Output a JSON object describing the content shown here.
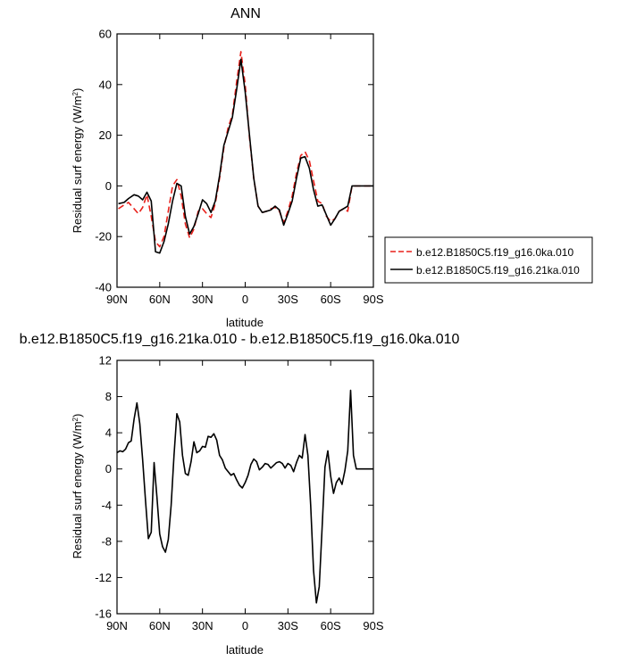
{
  "chart_data": [
    {
      "type": "line",
      "title": "ANN",
      "xlabel": "latitude",
      "ylabel": "Residual surf energy (W/m²)",
      "ylabel_text": "Residual surf energy (W/m",
      "ylabel_sup": "2",
      "ylabel_close": ")",
      "xlim": [
        90,
        -90
      ],
      "ylim": [
        -40,
        60
      ],
      "x_ticks": [
        90,
        60,
        30,
        0,
        -30,
        -60,
        -90
      ],
      "x_tick_labels": [
        "90N",
        "60N",
        "30N",
        "0",
        "30S",
        "60S",
        "90S"
      ],
      "y_ticks": [
        -40,
        -20,
        0,
        20,
        40,
        60
      ],
      "y_tick_labels": [
        "-40",
        "-20",
        "0",
        "20",
        "40",
        "60"
      ],
      "legend_position": "right",
      "series": [
        {
          "name": "b.e12.B1850C5.f19_g16.0ka.010",
          "color": "#e8201a",
          "dash": "dashed",
          "x": [
            89,
            85,
            82,
            78,
            75,
            72,
            69,
            66,
            63,
            60,
            57,
            54,
            51,
            48,
            45,
            42,
            39,
            36,
            33,
            30,
            27,
            24,
            21,
            18,
            15,
            12,
            9,
            6,
            3,
            0,
            -3,
            -6,
            -9,
            -12,
            -15,
            -18,
            -21,
            -24,
            -27,
            -30,
            -33,
            -36,
            -39,
            -42,
            -45,
            -48,
            -51,
            -54,
            -57,
            -60,
            -63,
            -66,
            -69,
            -72,
            -75,
            -78,
            -81,
            -84,
            -87,
            -90
          ],
          "y": [
            -9,
            -7.5,
            -6.5,
            -9,
            -11,
            -8.5,
            -3.5,
            -12,
            -22,
            -24,
            -20,
            -10,
            0,
            2.5,
            -4,
            -15,
            -20.5,
            -17,
            -10,
            -9,
            -11,
            -12.5,
            -7,
            3,
            15,
            23,
            28,
            41,
            53,
            40,
            19,
            3,
            -8,
            -10.5,
            -10,
            -9,
            -8.5,
            -10,
            -14.5,
            -10,
            -4,
            5,
            12,
            13.5,
            10,
            2,
            -6,
            -7,
            -12,
            -14,
            -13,
            -10,
            -9,
            -10,
            0,
            0,
            0,
            0,
            0,
            0
          ]
        },
        {
          "name": "b.e12.B1850C5.f19_g16.21ka.010",
          "color": "#000000",
          "dash": "solid",
          "x": [
            89,
            85,
            82,
            78,
            75,
            72,
            69,
            66,
            63,
            60,
            57,
            54,
            51,
            48,
            45,
            42,
            39,
            36,
            33,
            30,
            27,
            24,
            21,
            18,
            15,
            12,
            9,
            6,
            3,
            0,
            -3,
            -6,
            -9,
            -12,
            -15,
            -18,
            -21,
            -24,
            -27,
            -30,
            -33,
            -36,
            -39,
            -42,
            -45,
            -48,
            -51,
            -54,
            -57,
            -60,
            -63,
            -66,
            -69,
            -72,
            -75,
            -78,
            -81,
            -84,
            -87,
            -90
          ],
          "y": [
            -7,
            -6.5,
            -5,
            -3.5,
            -4,
            -5.5,
            -2.5,
            -6,
            -26,
            -26.5,
            -22,
            -15,
            -6,
            1,
            0,
            -12,
            -19,
            -16,
            -11,
            -5.5,
            -7,
            -10.5,
            -6,
            4,
            16,
            21.5,
            27,
            38,
            50,
            37,
            20,
            3,
            -8,
            -10.5,
            -10,
            -9.5,
            -8,
            -9.5,
            -15.5,
            -11,
            -6,
            3,
            11,
            11.5,
            7,
            -1.5,
            -8,
            -7.5,
            -11.5,
            -15.5,
            -13,
            -10,
            -9,
            -8,
            0,
            0,
            0,
            0,
            0,
            0
          ]
        }
      ]
    },
    {
      "type": "line",
      "title": "b.e12.B1850C5.f19_g16.21ka.010 - b.e12.B1850C5.f19_g16.0ka.010",
      "xlabel": "latitude",
      "ylabel": "Residual surf energy (W/m²)",
      "ylabel_text": "Residual surf energy (W/m",
      "ylabel_sup": "2",
      "ylabel_close": ")",
      "xlim": [
        90,
        -90
      ],
      "ylim": [
        -16,
        12
      ],
      "x_ticks": [
        90,
        60,
        30,
        0,
        -30,
        -60,
        -90
      ],
      "x_tick_labels": [
        "90N",
        "60N",
        "30N",
        "0",
        "30S",
        "60S",
        "90S"
      ],
      "y_ticks": [
        -16,
        -12,
        -8,
        -4,
        0,
        4,
        8,
        12
      ],
      "y_tick_labels": [
        "-16",
        "-12",
        "-8",
        "-4",
        "0",
        "4",
        "8",
        "12"
      ],
      "series": [
        {
          "color": "#000000",
          "dash": "solid",
          "x": [
            90,
            88,
            86,
            84,
            82,
            80,
            78,
            76,
            74,
            72,
            70,
            68,
            66,
            64,
            62,
            60,
            58,
            56,
            54,
            52,
            50,
            48,
            46,
            44,
            42,
            40,
            38,
            36,
            34,
            32,
            30,
            28,
            26,
            24,
            22,
            20,
            18,
            16,
            14,
            12,
            10,
            8,
            6,
            4,
            2,
            0,
            -2,
            -4,
            -6,
            -8,
            -10,
            -12,
            -14,
            -16,
            -18,
            -20,
            -22,
            -24,
            -26,
            -28,
            -30,
            -32,
            -34,
            -36,
            -38,
            -40,
            -42,
            -44,
            -46,
            -48,
            -50,
            -52,
            -54,
            -56,
            -58,
            -60,
            -62,
            -64,
            -66,
            -68,
            -70,
            -72,
            -74,
            -76,
            -78,
            -80,
            -82,
            -84,
            -86,
            -88,
            -90
          ],
          "y": [
            1.8,
            2.0,
            1.9,
            2.2,
            2.9,
            3.1,
            5.5,
            7.3,
            5.0,
            1.0,
            -3.5,
            -7.7,
            -7.0,
            0.7,
            -3.0,
            -7.2,
            -8.6,
            -9.2,
            -7.8,
            -4.0,
            1.5,
            6.1,
            5.2,
            1.5,
            -0.5,
            -0.7,
            0.8,
            3.0,
            1.8,
            2.0,
            2.5,
            2.4,
            3.6,
            3.5,
            3.9,
            3.2,
            1.5,
            1.0,
            0.1,
            -0.3,
            -0.7,
            -0.5,
            -1.2,
            -1.8,
            -2.1,
            -1.5,
            -0.7,
            0.5,
            1.1,
            0.8,
            -0.1,
            0.2,
            0.6,
            0.5,
            0.1,
            0.4,
            0.7,
            0.8,
            0.6,
            0.1,
            0.6,
            0.4,
            -0.3,
            0.7,
            1.5,
            1.2,
            3.8,
            1.5,
            -4.0,
            -11.2,
            -14.8,
            -13.0,
            -6.5,
            0.2,
            2.0,
            -0.8,
            -2.7,
            -1.5,
            -1.0,
            -1.7,
            -0.2,
            2.0,
            8.7,
            1.5,
            0.0,
            0.0,
            0.0,
            0.0,
            0.0,
            0.0,
            0.0
          ]
        }
      ]
    }
  ]
}
